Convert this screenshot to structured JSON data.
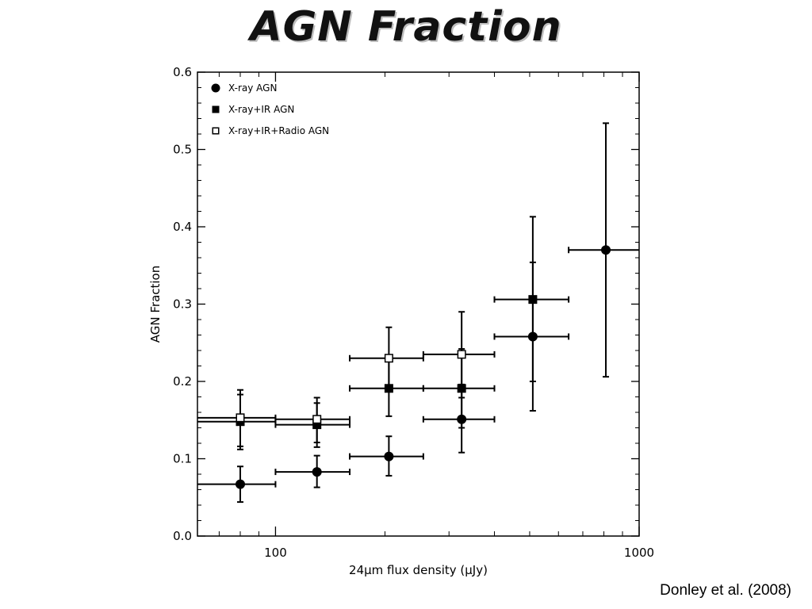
{
  "slide": {
    "title": "AGN Fraction",
    "citation": "Donley et al. (2008)"
  },
  "chart_data": {
    "type": "scatter",
    "xlabel": "24μm flux density (μJy)",
    "ylabel": "AGN Fraction",
    "xscale": "log",
    "xlim": [
      61,
      1000
    ],
    "ylim": [
      0.0,
      0.6
    ],
    "xticks": [
      100,
      1000
    ],
    "xtick_labels": [
      "100",
      "1000"
    ],
    "yticks": [
      0.0,
      0.1,
      0.2,
      0.3,
      0.4,
      0.5,
      0.6
    ],
    "ytick_labels": [
      "0.0",
      "0.1",
      "0.2",
      "0.3",
      "0.4",
      "0.5",
      "0.6"
    ],
    "legend_position": "top-left",
    "series": [
      {
        "name": "X-ray AGN",
        "marker": "filled-circle",
        "points": [
          {
            "x": 80,
            "y": 0.067,
            "xlo": 61,
            "xhi": 100,
            "ylo": 0.044,
            "yhi": 0.09
          },
          {
            "x": 130,
            "y": 0.083,
            "xlo": 100,
            "xhi": 160,
            "ylo": 0.063,
            "yhi": 0.104
          },
          {
            "x": 205,
            "y": 0.103,
            "xlo": 160,
            "xhi": 255,
            "ylo": 0.078,
            "yhi": 0.129
          },
          {
            "x": 325,
            "y": 0.151,
            "xlo": 255,
            "xhi": 400,
            "ylo": 0.108,
            "yhi": 0.196
          },
          {
            "x": 510,
            "y": 0.258,
            "xlo": 400,
            "xhi": 640,
            "ylo": 0.162,
            "yhi": 0.354
          },
          {
            "x": 810,
            "y": 0.37,
            "xlo": 640,
            "xhi": 1000,
            "ylo": 0.206,
            "yhi": 0.534
          }
        ]
      },
      {
        "name": "X-ray+IR AGN",
        "marker": "filled-square",
        "points": [
          {
            "x": 80,
            "y": 0.148,
            "xlo": 61,
            "xhi": 100,
            "ylo": 0.112,
            "yhi": 0.183
          },
          {
            "x": 130,
            "y": 0.144,
            "xlo": 100,
            "xhi": 160,
            "ylo": 0.115,
            "yhi": 0.172
          },
          {
            "x": 205,
            "y": 0.191,
            "xlo": 160,
            "xhi": 255,
            "ylo": 0.155,
            "yhi": 0.227
          },
          {
            "x": 325,
            "y": 0.191,
            "xlo": 255,
            "xhi": 400,
            "ylo": 0.14,
            "yhi": 0.242
          },
          {
            "x": 510,
            "y": 0.306,
            "xlo": 400,
            "xhi": 640,
            "ylo": 0.2,
            "yhi": 0.413
          }
        ]
      },
      {
        "name": "X-ray+IR+Radio AGN",
        "marker": "open-square",
        "points": [
          {
            "x": 80,
            "y": 0.153,
            "xlo": 61,
            "xhi": 100,
            "ylo": 0.116,
            "yhi": 0.189
          },
          {
            "x": 130,
            "y": 0.151,
            "xlo": 100,
            "xhi": 160,
            "ylo": 0.121,
            "yhi": 0.179
          },
          {
            "x": 205,
            "y": 0.23,
            "xlo": 160,
            "xhi": 255,
            "ylo": 0.191,
            "yhi": 0.27
          },
          {
            "x": 325,
            "y": 0.235,
            "xlo": 255,
            "xhi": 400,
            "ylo": 0.179,
            "yhi": 0.29
          }
        ]
      }
    ]
  }
}
